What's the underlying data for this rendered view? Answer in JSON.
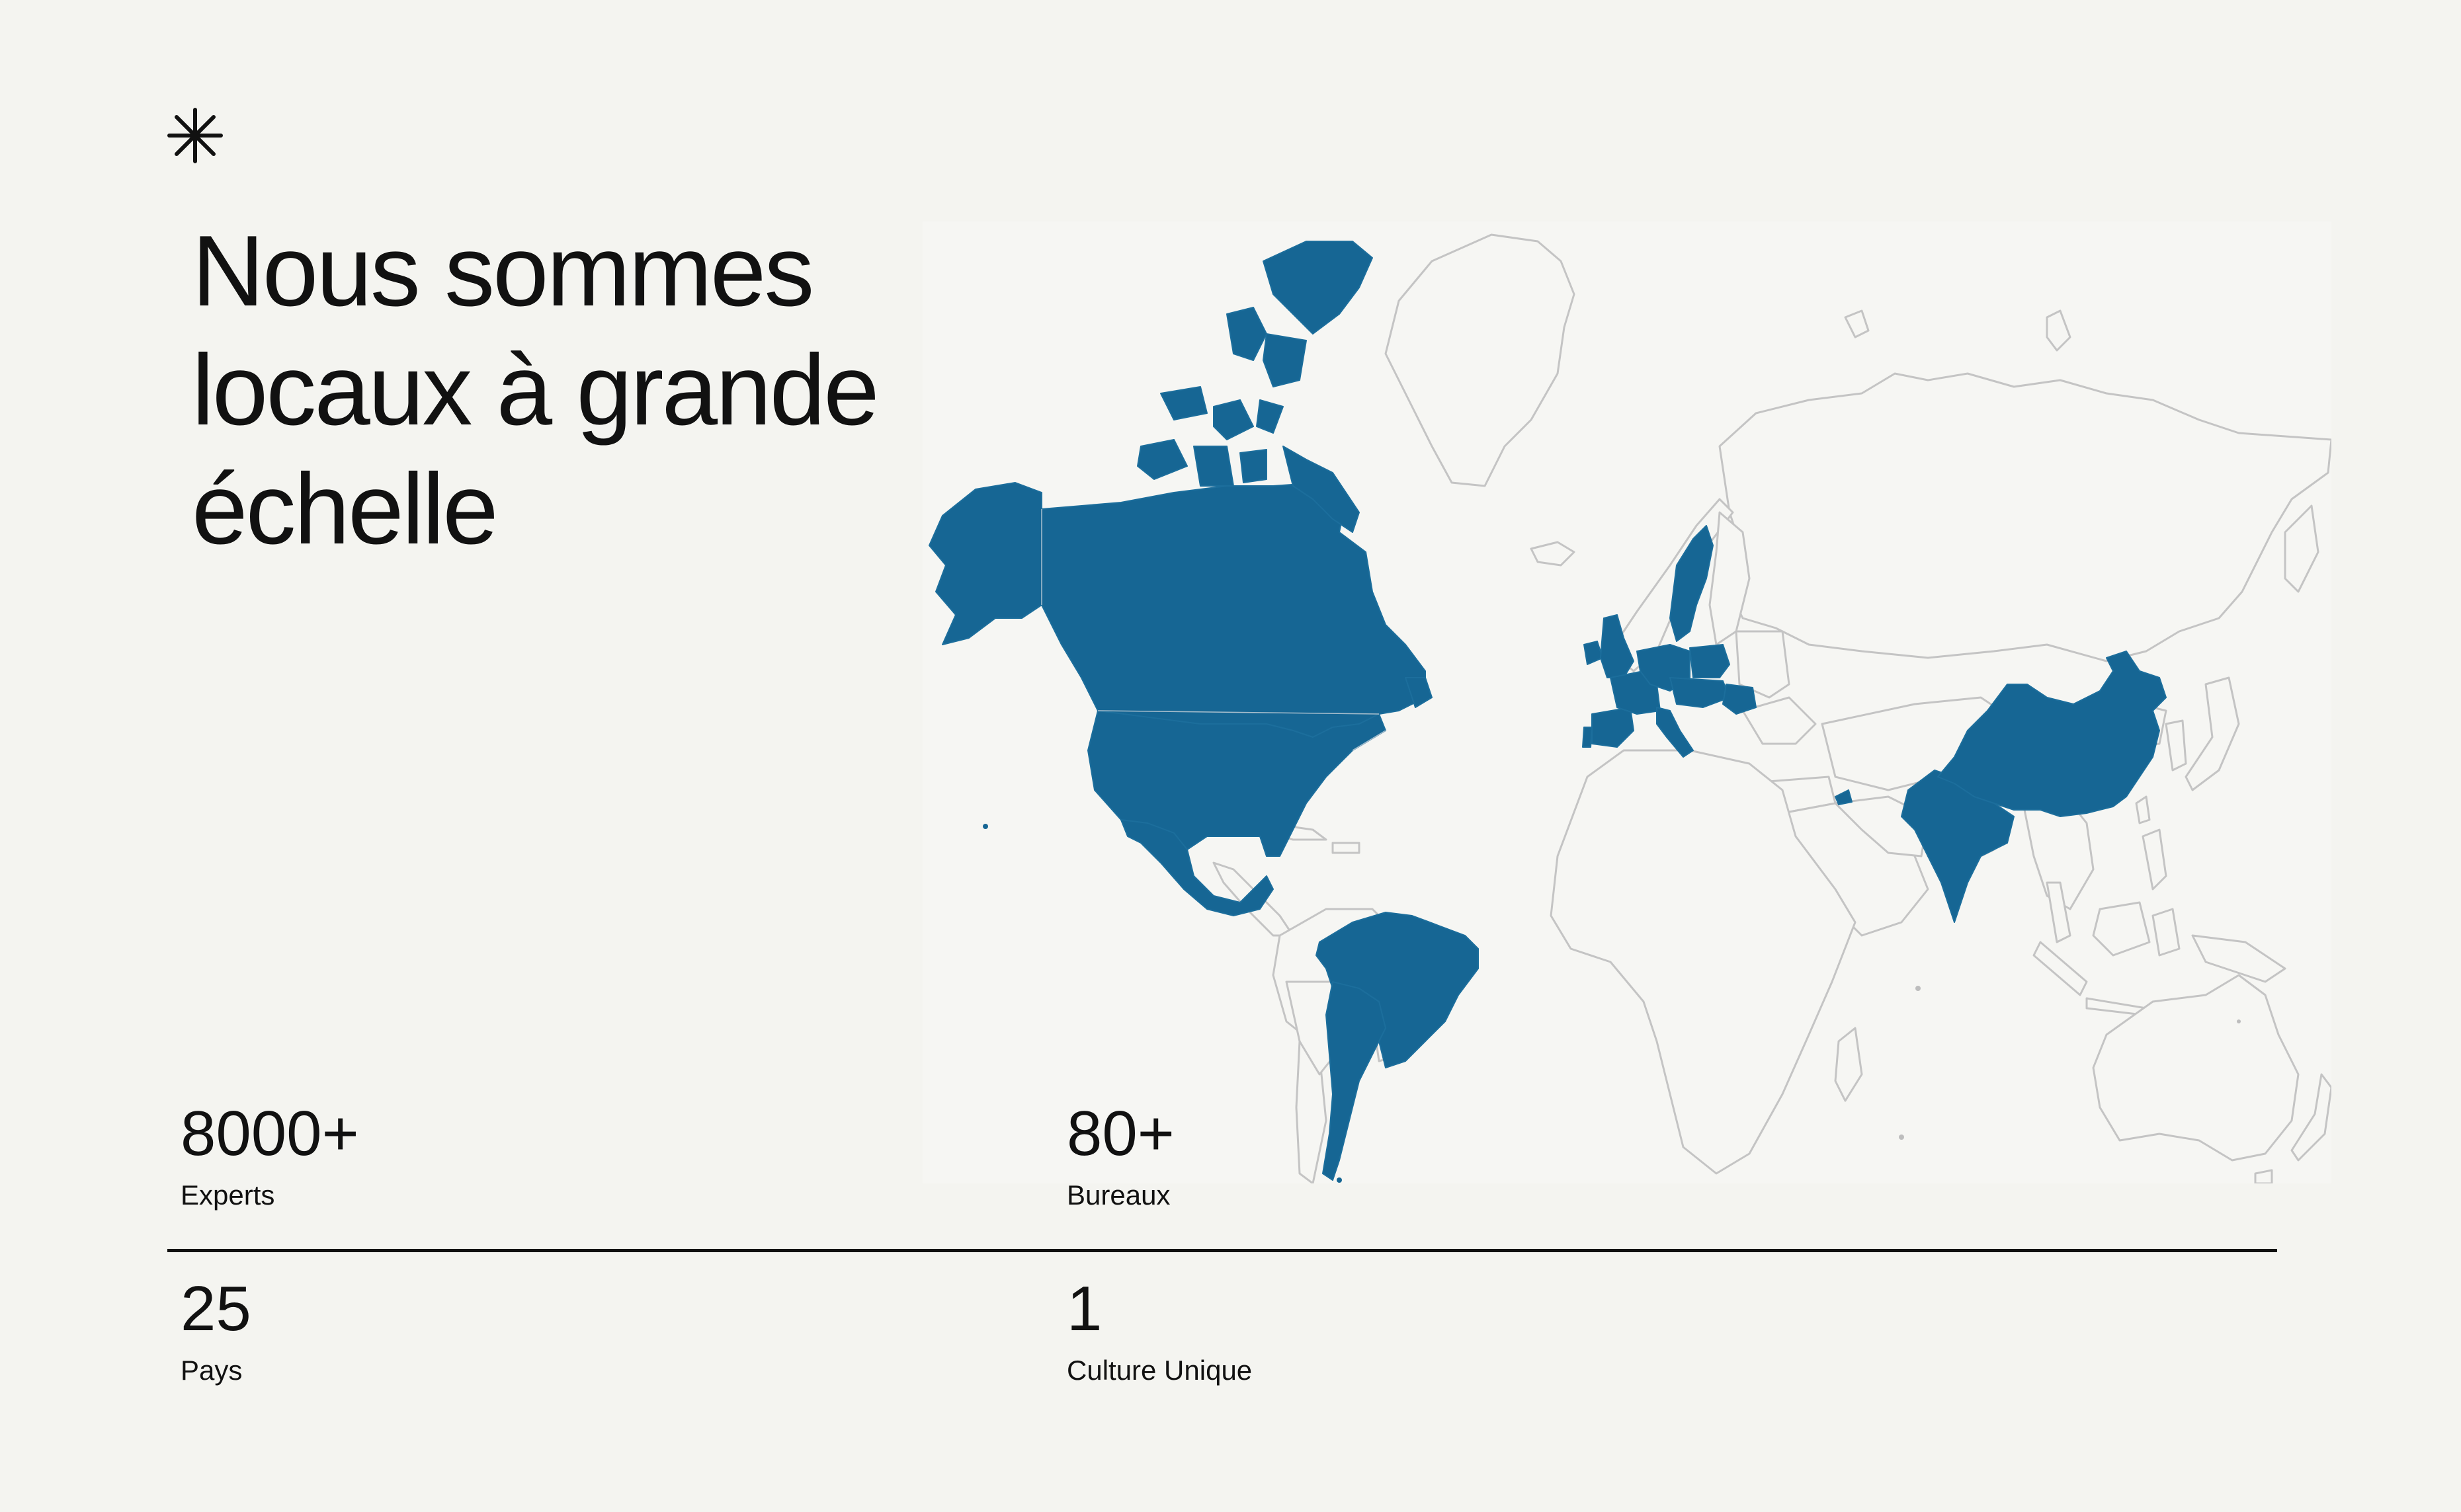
{
  "header": {
    "logo_icon": "asterisk-icon",
    "title_line1": "Nous sommes",
    "title_line2": "locaux à grande",
    "title_line3": "échelle"
  },
  "map": {
    "highlight_color": "#166694",
    "base_fill": "#f6f6f3",
    "outline_color": "#bdbdbd",
    "highlighted_regions": [
      "Canada",
      "United States",
      "Mexico",
      "Brazil",
      "Argentina",
      "Ireland",
      "United Kingdom",
      "Portugal",
      "Spain",
      "France",
      "Belgium",
      "Netherlands",
      "Germany",
      "Sweden",
      "Poland",
      "Czech Republic",
      "Austria",
      "Hungary",
      "Romania",
      "Italy",
      "India",
      "China",
      "United Arab Emirates"
    ]
  },
  "stats": [
    {
      "value": "8000+",
      "label": "Experts"
    },
    {
      "value": "80+",
      "label": "Bureaux"
    },
    {
      "value": "25",
      "label": "Pays"
    },
    {
      "value": "1",
      "label": "Culture Unique"
    }
  ]
}
